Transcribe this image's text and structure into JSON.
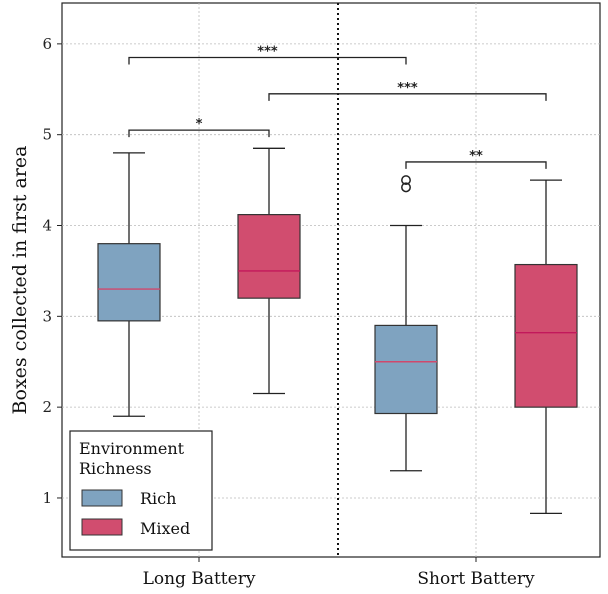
{
  "chart_data": {
    "type": "box",
    "ylabel": "Boxes collected in first area",
    "xlabel": "",
    "ylim": [
      0.35,
      6.45
    ],
    "yticks": [
      1,
      2,
      3,
      4,
      5,
      6
    ],
    "grid": true,
    "categories": [
      "Long Battery",
      "Short Battery"
    ],
    "legend": {
      "title": "Environment\nRichness",
      "title_lines": [
        "Environment",
        "Richness"
      ],
      "position": "lower-left"
    },
    "series": [
      {
        "name": "Rich",
        "color": "#7fa3c0",
        "median_color": "#d0486c",
        "boxes": [
          {
            "category": "Long Battery",
            "whisker_low": 1.9,
            "q1": 2.95,
            "median": 3.3,
            "q3": 3.8,
            "whisker_high": 4.8,
            "outliers": []
          },
          {
            "category": "Short Battery",
            "whisker_low": 1.3,
            "q1": 1.93,
            "median": 2.5,
            "q3": 2.9,
            "whisker_high": 4.0,
            "outliers": [
              4.42,
              4.5
            ]
          }
        ]
      },
      {
        "name": "Mixed",
        "color": "#d14d6f",
        "median_color": "#c2185b",
        "boxes": [
          {
            "category": "Long Battery",
            "whisker_low": 2.15,
            "q1": 3.2,
            "median": 3.5,
            "q3": 4.12,
            "whisker_high": 4.85,
            "outliers": []
          },
          {
            "category": "Short Battery",
            "whisker_low": 0.83,
            "q1": 2.0,
            "median": 2.82,
            "q3": 3.57,
            "whisker_high": 4.5,
            "outliers": []
          }
        ]
      }
    ],
    "significance": [
      {
        "from": "Long Battery|Rich",
        "to": "Short Battery|Rich",
        "y": 5.85,
        "label": "***"
      },
      {
        "from": "Long Battery|Mixed",
        "to": "Short Battery|Mixed",
        "y": 5.45,
        "label": "***"
      },
      {
        "from": "Long Battery|Rich",
        "to": "Long Battery|Mixed",
        "y": 5.05,
        "label": "*"
      },
      {
        "from": "Short Battery|Rich",
        "to": "Short Battery|Mixed",
        "y": 4.7,
        "label": "**"
      }
    ]
  }
}
